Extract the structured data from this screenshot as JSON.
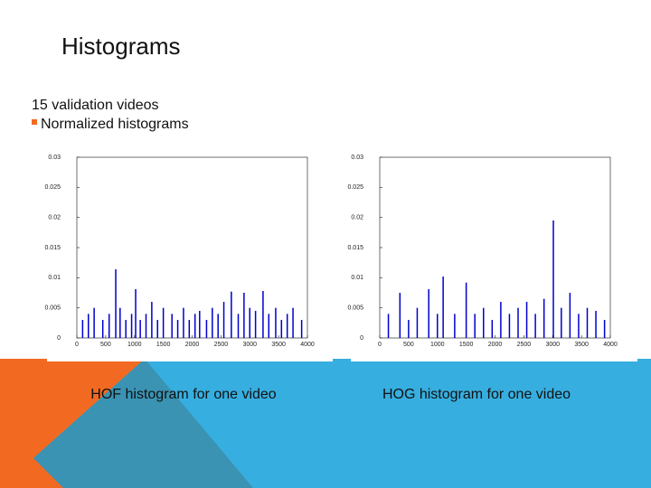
{
  "title": "Histograms",
  "bullets": [
    "15 validation videos",
    "Normalized histograms"
  ],
  "chart_data": [
    {
      "type": "bar",
      "caption": "HOF histogram for one video",
      "color": "#0000cc",
      "x": [
        100,
        200,
        300,
        450,
        560,
        675,
        750,
        850,
        950,
        1020,
        1100,
        1200,
        1300,
        1400,
        1500,
        1650,
        1750,
        1850,
        1950,
        2050,
        2130,
        2250,
        2350,
        2450,
        2550,
        2680,
        2800,
        2900,
        3000,
        3100,
        3230,
        3330,
        3450,
        3550,
        3650,
        3750,
        3900
      ],
      "values": [
        0.003,
        0.004,
        0.005,
        0.003,
        0.004,
        0.0114,
        0.005,
        0.003,
        0.004,
        0.0081,
        0.003,
        0.004,
        0.006,
        0.003,
        0.005,
        0.004,
        0.003,
        0.005,
        0.003,
        0.004,
        0.0045,
        0.003,
        0.005,
        0.004,
        0.006,
        0.0077,
        0.004,
        0.0075,
        0.005,
        0.0045,
        0.0078,
        0.004,
        0.005,
        0.003,
        0.004,
        0.005,
        0.003
      ],
      "xlim": [
        0,
        4000
      ],
      "ylim": [
        0,
        0.03
      ],
      "xticks": [
        0,
        500,
        1000,
        1500,
        2000,
        2500,
        3000,
        3500,
        4000
      ],
      "yticks": [
        0,
        0.005,
        0.01,
        0.015,
        0.02,
        0.025,
        0.03
      ]
    },
    {
      "type": "bar",
      "caption": "HOG histogram for one video",
      "color": "#0000cc",
      "x": [
        150,
        350,
        500,
        650,
        850,
        1000,
        1100,
        1300,
        1500,
        1650,
        1800,
        1950,
        2100,
        2250,
        2400,
        2550,
        2700,
        2850,
        3012,
        3150,
        3300,
        3450,
        3600,
        3750,
        3900
      ],
      "values": [
        0.004,
        0.0075,
        0.003,
        0.005,
        0.0081,
        0.004,
        0.0102,
        0.004,
        0.0092,
        0.004,
        0.005,
        0.003,
        0.006,
        0.004,
        0.005,
        0.006,
        0.004,
        0.0065,
        0.0195,
        0.005,
        0.0075,
        0.004,
        0.005,
        0.0045,
        0.003
      ],
      "xlim": [
        0,
        4000
      ],
      "ylim": [
        0,
        0.03
      ],
      "xticks": [
        0,
        500,
        1000,
        1500,
        2000,
        2500,
        3000,
        3500,
        4000
      ],
      "yticks": [
        0,
        0.005,
        0.01,
        0.015,
        0.02,
        0.025,
        0.03
      ]
    }
  ]
}
